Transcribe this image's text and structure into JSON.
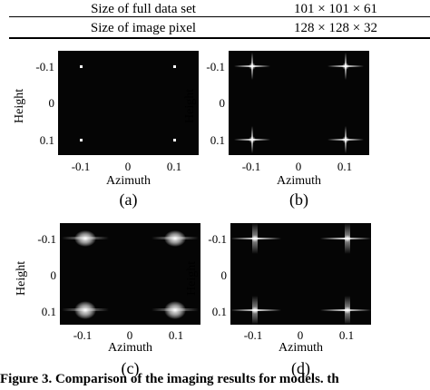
{
  "table": {
    "rows": [
      {
        "label": "Size of full data set",
        "value": "101 × 101 × 61"
      },
      {
        "label": "Size of image pixel",
        "value": "128 × 128 × 32"
      }
    ]
  },
  "panels": [
    {
      "label": "(a)",
      "style": "points"
    },
    {
      "label": "(b)",
      "style": "cross"
    },
    {
      "label": "(c)",
      "style": "blob"
    },
    {
      "label": "(d)",
      "style": "sidelobes"
    }
  ],
  "axes": {
    "ylabel": "Height",
    "xlabel": "Azimuth",
    "yticks": [
      "-0.1",
      "0",
      "0.1"
    ],
    "xticks": [
      "-0.1",
      "0",
      "0.1"
    ]
  },
  "caption": "Figure 3.   Comparison of the imaging results for models. th"
}
